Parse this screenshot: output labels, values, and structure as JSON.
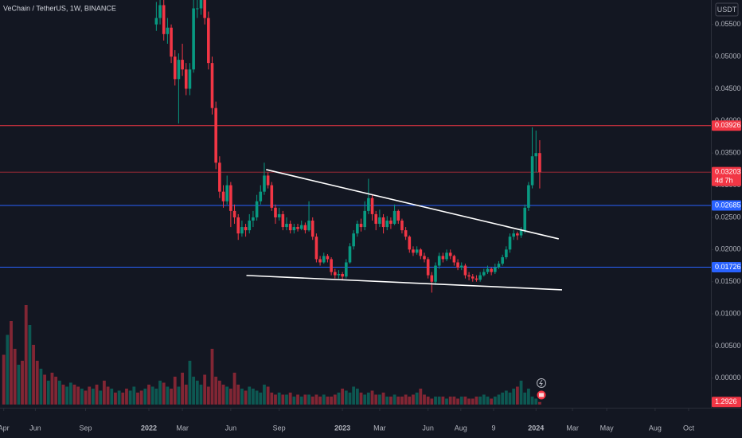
{
  "chart_data": {
    "type": "candlestick",
    "title": "VeChain / TetherUS, 1W, BINANCE",
    "currency": "USDT",
    "countdown": "4d 7h",
    "up_color": "#089981",
    "down_color": "#f23645",
    "xlim": [
      -1,
      190
    ],
    "ylim": [
      -0.0046,
      0.0588
    ],
    "vlim": [
      0,
      60
    ],
    "grid": false,
    "xticks": [
      {
        "value": 0,
        "label": "Apr"
      },
      {
        "value": 8.5,
        "label": "Jun"
      },
      {
        "value": 22,
        "label": "Sep"
      },
      {
        "value": 39,
        "label": "2022"
      },
      {
        "value": 48,
        "label": "Mar"
      },
      {
        "value": 61,
        "label": "Jun"
      },
      {
        "value": 74,
        "label": "Sep"
      },
      {
        "value": 91,
        "label": "2023"
      },
      {
        "value": 101,
        "label": "Mar"
      },
      {
        "value": 114,
        "label": "Jun"
      },
      {
        "value": 122.8,
        "label": "Aug"
      },
      {
        "value": 131.6,
        "label": "9"
      },
      {
        "value": 143,
        "label": "2024"
      },
      {
        "value": 152.8,
        "label": "Mar"
      },
      {
        "value": 162,
        "label": "May"
      },
      {
        "value": 175,
        "label": "Aug"
      },
      {
        "value": 184,
        "label": "Oct"
      }
    ],
    "yticks": [
      {
        "value": 0.055,
        "label": "0.05500"
      },
      {
        "value": 0.05,
        "label": "0.05000"
      },
      {
        "value": 0.045,
        "label": "0.04500"
      },
      {
        "value": 0.04,
        "label": "0.04000"
      },
      {
        "value": 0.035,
        "label": "0.03500"
      },
      {
        "value": 0.03,
        "label": "0.03000"
      },
      {
        "value": 0.025,
        "label": "0.02500"
      },
      {
        "value": 0.02,
        "label": "0.02000"
      },
      {
        "value": 0.015,
        "label": "0.01500"
      },
      {
        "value": 0.01,
        "label": "0.01000"
      },
      {
        "value": 0.005,
        "label": "0.00500"
      },
      {
        "value": 0,
        "label": "0.00000"
      }
    ],
    "levels": [
      {
        "value": 0.03926,
        "color": "#f23645"
      },
      {
        "value": 0.03203,
        "color": "#f23645",
        "last": true
      },
      {
        "value": 0.02685,
        "color": "#2962ff"
      },
      {
        "value": 0.01726,
        "color": "#2962ff"
      }
    ],
    "trendlines": [
      {
        "x": [
          70.5,
          149.1
        ],
        "y": [
          0.03243,
          0.02166
        ]
      },
      {
        "x": [
          65.2,
          150
        ],
        "y": [
          0.01597,
          0.01374
        ]
      }
    ],
    "candles": [
      [
        41,
        0.055,
        0.0585,
        0.054,
        0.056
      ],
      [
        42,
        0.056,
        0.0595,
        0.055,
        0.058
      ],
      [
        43,
        0.058,
        0.059,
        0.0525,
        0.0535
      ],
      [
        44,
        0.0535,
        0.056,
        0.052,
        0.0545
      ],
      [
        45,
        0.0545,
        0.055,
        0.049,
        0.05
      ],
      [
        46,
        0.05,
        0.051,
        0.0455,
        0.0465
      ],
      [
        47,
        0.0465,
        0.0505,
        0.0396,
        0.0495
      ],
      [
        48,
        0.0495,
        0.052,
        0.047,
        0.048
      ],
      [
        49,
        0.048,
        0.049,
        0.044,
        0.045
      ],
      [
        50,
        0.045,
        0.049,
        0.044,
        0.048
      ],
      [
        51,
        0.048,
        0.059,
        0.0475,
        0.0575
      ],
      [
        52,
        0.0575,
        0.06,
        0.056,
        0.0575
      ],
      [
        53,
        0.0575,
        0.061,
        0.0565,
        0.059
      ],
      [
        54,
        0.059,
        0.06,
        0.055,
        0.056
      ],
      [
        55,
        0.056,
        0.057,
        0.048,
        0.049
      ],
      [
        56,
        0.049,
        0.05,
        0.041,
        0.042
      ],
      [
        57,
        0.042,
        0.043,
        0.0325,
        0.0335
      ],
      [
        58,
        0.0335,
        0.0345,
        0.028,
        0.029
      ],
      [
        59,
        0.029,
        0.03,
        0.0265,
        0.0275
      ],
      [
        60,
        0.0275,
        0.0315,
        0.027,
        0.03
      ],
      [
        61,
        0.03,
        0.0305,
        0.0235,
        0.026
      ],
      [
        62,
        0.026,
        0.027,
        0.024,
        0.025
      ],
      [
        63,
        0.025,
        0.0255,
        0.0215,
        0.0225
      ],
      [
        64,
        0.0225,
        0.0245,
        0.022,
        0.0235
      ],
      [
        65,
        0.0235,
        0.024,
        0.022,
        0.023
      ],
      [
        66,
        0.023,
        0.0255,
        0.0225,
        0.0245
      ],
      [
        67,
        0.0245,
        0.026,
        0.0235,
        0.025
      ],
      [
        68,
        0.025,
        0.0285,
        0.0245,
        0.0275
      ],
      [
        69,
        0.0275,
        0.03,
        0.027,
        0.029
      ],
      [
        70,
        0.029,
        0.0335,
        0.0285,
        0.0315
      ],
      [
        71,
        0.0315,
        0.032,
        0.0295,
        0.03
      ],
      [
        72,
        0.03,
        0.0305,
        0.026,
        0.0265
      ],
      [
        73,
        0.0265,
        0.027,
        0.024,
        0.025
      ],
      [
        74,
        0.025,
        0.0265,
        0.0245,
        0.0255
      ],
      [
        75,
        0.0255,
        0.026,
        0.023,
        0.0235
      ],
      [
        76,
        0.0235,
        0.025,
        0.023,
        0.024
      ],
      [
        77,
        0.024,
        0.0245,
        0.0225,
        0.023
      ],
      [
        78,
        0.023,
        0.024,
        0.0225,
        0.0235
      ],
      [
        79,
        0.0235,
        0.024,
        0.0228,
        0.0232
      ],
      [
        80,
        0.0232,
        0.0245,
        0.023,
        0.0238
      ],
      [
        81,
        0.0238,
        0.0242,
        0.0225,
        0.023
      ],
      [
        82,
        0.023,
        0.0275,
        0.0228,
        0.0245
      ],
      [
        83,
        0.0245,
        0.025,
        0.0215,
        0.022
      ],
      [
        84,
        0.022,
        0.0225,
        0.018,
        0.0185
      ],
      [
        85,
        0.0185,
        0.019,
        0.0175,
        0.018
      ],
      [
        86,
        0.018,
        0.0195,
        0.0178,
        0.019
      ],
      [
        87,
        0.019,
        0.0193,
        0.018,
        0.0185
      ],
      [
        88,
        0.0185,
        0.0188,
        0.016,
        0.0165
      ],
      [
        89,
        0.0165,
        0.017,
        0.0155,
        0.016
      ],
      [
        90,
        0.016,
        0.0168,
        0.0155,
        0.0162
      ],
      [
        91,
        0.0162,
        0.0165,
        0.0152,
        0.0158
      ],
      [
        92,
        0.0158,
        0.0185,
        0.0155,
        0.018
      ],
      [
        93,
        0.018,
        0.021,
        0.0178,
        0.0205
      ],
      [
        94,
        0.0205,
        0.023,
        0.02,
        0.0225
      ],
      [
        95,
        0.0225,
        0.0245,
        0.022,
        0.024
      ],
      [
        96,
        0.024,
        0.0248,
        0.0228,
        0.0235
      ],
      [
        97,
        0.0235,
        0.0275,
        0.023,
        0.026
      ],
      [
        98,
        0.026,
        0.031,
        0.0255,
        0.028
      ],
      [
        99,
        0.028,
        0.0285,
        0.0245,
        0.0255
      ],
      [
        100,
        0.0255,
        0.026,
        0.023,
        0.024
      ],
      [
        101,
        0.024,
        0.0262,
        0.0235,
        0.025
      ],
      [
        102,
        0.025,
        0.0255,
        0.0225,
        0.0235
      ],
      [
        103,
        0.0235,
        0.0252,
        0.023,
        0.0245
      ],
      [
        104,
        0.0245,
        0.025,
        0.0232,
        0.024
      ],
      [
        105,
        0.024,
        0.027,
        0.0238,
        0.026
      ],
      [
        106,
        0.026,
        0.0262,
        0.024,
        0.0245
      ],
      [
        107,
        0.0245,
        0.0248,
        0.0225,
        0.023
      ],
      [
        108,
        0.023,
        0.0235,
        0.0215,
        0.022
      ],
      [
        109,
        0.022,
        0.0222,
        0.0195,
        0.02
      ],
      [
        110,
        0.02,
        0.0205,
        0.019,
        0.0195
      ],
      [
        111,
        0.0195,
        0.0205,
        0.0192,
        0.02
      ],
      [
        112,
        0.02,
        0.0202,
        0.0185,
        0.019
      ],
      [
        113,
        0.019,
        0.0195,
        0.018,
        0.0185
      ],
      [
        114,
        0.0185,
        0.0188,
        0.0155,
        0.016
      ],
      [
        115,
        0.016,
        0.0165,
        0.0133,
        0.015
      ],
      [
        116,
        0.015,
        0.018,
        0.0145,
        0.0175
      ],
      [
        117,
        0.0175,
        0.0195,
        0.017,
        0.019
      ],
      [
        118,
        0.019,
        0.0195,
        0.018,
        0.0185
      ],
      [
        119,
        0.0185,
        0.02,
        0.0182,
        0.0195
      ],
      [
        120,
        0.0195,
        0.02,
        0.0185,
        0.019
      ],
      [
        121,
        0.019,
        0.0192,
        0.0175,
        0.018
      ],
      [
        122,
        0.018,
        0.0185,
        0.0168,
        0.0172
      ],
      [
        123,
        0.0172,
        0.018,
        0.0168,
        0.0175
      ],
      [
        124,
        0.0175,
        0.0178,
        0.0155,
        0.016
      ],
      [
        125,
        0.016,
        0.0165,
        0.0152,
        0.0158
      ],
      [
        126,
        0.0158,
        0.0162,
        0.015,
        0.0155
      ],
      [
        127,
        0.0155,
        0.016,
        0.015,
        0.0153
      ],
      [
        128,
        0.0153,
        0.0165,
        0.015,
        0.016
      ],
      [
        129,
        0.016,
        0.017,
        0.0158,
        0.0165
      ],
      [
        130,
        0.0165,
        0.0175,
        0.0162,
        0.017
      ],
      [
        131,
        0.017,
        0.0172,
        0.016,
        0.0165
      ],
      [
        132,
        0.0165,
        0.0178,
        0.0162,
        0.0172
      ],
      [
        133,
        0.0172,
        0.0182,
        0.017,
        0.0178
      ],
      [
        134,
        0.0178,
        0.0192,
        0.0175,
        0.0188
      ],
      [
        135,
        0.0188,
        0.0205,
        0.0185,
        0.02
      ],
      [
        136,
        0.02,
        0.0225,
        0.0195,
        0.022
      ],
      [
        137,
        0.022,
        0.023,
        0.0215,
        0.0225
      ],
      [
        138,
        0.0225,
        0.0228,
        0.0215,
        0.0222
      ],
      [
        139,
        0.0222,
        0.0235,
        0.0218,
        0.023
      ],
      [
        140,
        0.023,
        0.027,
        0.0225,
        0.0265
      ],
      [
        141,
        0.0265,
        0.0305,
        0.026,
        0.03
      ],
      [
        142,
        0.03,
        0.039,
        0.0295,
        0.0345
      ],
      [
        143,
        0.0345,
        0.0385,
        0.032,
        0.035
      ],
      [
        144,
        0.035,
        0.037,
        0.0295,
        0.03203
      ]
    ],
    "volume": [
      [
        0,
        25,
        0
      ],
      [
        1,
        35,
        1
      ],
      [
        2,
        42,
        0
      ],
      [
        3,
        28,
        0
      ],
      [
        4,
        20,
        1
      ],
      [
        5,
        22,
        0
      ],
      [
        6,
        50,
        0
      ],
      [
        7,
        40,
        1
      ],
      [
        8,
        30,
        0
      ],
      [
        9,
        22,
        0
      ],
      [
        10,
        18,
        1
      ],
      [
        11,
        15,
        0
      ],
      [
        12,
        12,
        1
      ],
      [
        13,
        16,
        0
      ],
      [
        14,
        14,
        0
      ],
      [
        15,
        12,
        1
      ],
      [
        16,
        10,
        0
      ],
      [
        17,
        9,
        1
      ],
      [
        18,
        11,
        1
      ],
      [
        19,
        10,
        0
      ],
      [
        20,
        9,
        0
      ],
      [
        21,
        8,
        1
      ],
      [
        22,
        7,
        0
      ],
      [
        23,
        9,
        0
      ],
      [
        24,
        8,
        1
      ],
      [
        25,
        10,
        0
      ],
      [
        26,
        7,
        1
      ],
      [
        27,
        12,
        0
      ],
      [
        28,
        9,
        0
      ],
      [
        29,
        8,
        1
      ],
      [
        30,
        6,
        0
      ],
      [
        31,
        7,
        1
      ],
      [
        32,
        6,
        0
      ],
      [
        33,
        8,
        0
      ],
      [
        34,
        7,
        1
      ],
      [
        35,
        9,
        1
      ],
      [
        36,
        6,
        0
      ],
      [
        37,
        7,
        0
      ],
      [
        38,
        8,
        1
      ],
      [
        39,
        10,
        0
      ],
      [
        40,
        9,
        1
      ],
      [
        41,
        8,
        1
      ],
      [
        42,
        12,
        1
      ],
      [
        43,
        11,
        0
      ],
      [
        44,
        9,
        1
      ],
      [
        45,
        8,
        0
      ],
      [
        46,
        14,
        0
      ],
      [
        47,
        9,
        1
      ],
      [
        48,
        16,
        0
      ],
      [
        49,
        10,
        0
      ],
      [
        50,
        22,
        1
      ],
      [
        51,
        14,
        1
      ],
      [
        52,
        12,
        1
      ],
      [
        53,
        10,
        1
      ],
      [
        54,
        15,
        0
      ],
      [
        55,
        9,
        0
      ],
      [
        56,
        28,
        0
      ],
      [
        57,
        14,
        0
      ],
      [
        58,
        12,
        0
      ],
      [
        59,
        10,
        0
      ],
      [
        60,
        9,
        1
      ],
      [
        61,
        8,
        0
      ],
      [
        62,
        16,
        0
      ],
      [
        63,
        10,
        0
      ],
      [
        64,
        8,
        1
      ],
      [
        65,
        7,
        0
      ],
      [
        66,
        9,
        1
      ],
      [
        67,
        8,
        1
      ],
      [
        68,
        7,
        1
      ],
      [
        69,
        6,
        1
      ],
      [
        70,
        10,
        1
      ],
      [
        71,
        9,
        0
      ],
      [
        72,
        6,
        0
      ],
      [
        73,
        5,
        0
      ],
      [
        74,
        6,
        1
      ],
      [
        75,
        5,
        0
      ],
      [
        76,
        5,
        1
      ],
      [
        77,
        6,
        0
      ],
      [
        78,
        4,
        1
      ],
      [
        79,
        5,
        0
      ],
      [
        80,
        4,
        1
      ],
      [
        81,
        5,
        0
      ],
      [
        82,
        5,
        1
      ],
      [
        83,
        4,
        0
      ],
      [
        84,
        5,
        0
      ],
      [
        85,
        4,
        0
      ],
      [
        86,
        5,
        1
      ],
      [
        87,
        4,
        0
      ],
      [
        88,
        4,
        0
      ],
      [
        89,
        5,
        0
      ],
      [
        90,
        6,
        1
      ],
      [
        91,
        8,
        0
      ],
      [
        92,
        7,
        1
      ],
      [
        93,
        6,
        1
      ],
      [
        94,
        9,
        1
      ],
      [
        95,
        8,
        1
      ],
      [
        96,
        6,
        0
      ],
      [
        97,
        5,
        1
      ],
      [
        98,
        6,
        1
      ],
      [
        99,
        7,
        0
      ],
      [
        100,
        5,
        0
      ],
      [
        101,
        5,
        1
      ],
      [
        102,
        6,
        0
      ],
      [
        103,
        4,
        1
      ],
      [
        104,
        4,
        0
      ],
      [
        105,
        5,
        1
      ],
      [
        106,
        4,
        0
      ],
      [
        107,
        4,
        0
      ],
      [
        108,
        5,
        0
      ],
      [
        109,
        4,
        0
      ],
      [
        110,
        5,
        0
      ],
      [
        111,
        6,
        1
      ],
      [
        112,
        8,
        0
      ],
      [
        113,
        5,
        0
      ],
      [
        114,
        4,
        0
      ],
      [
        115,
        3,
        0
      ],
      [
        116,
        4,
        1
      ],
      [
        117,
        4,
        1
      ],
      [
        118,
        4,
        0
      ],
      [
        119,
        3,
        1
      ],
      [
        120,
        4,
        0
      ],
      [
        121,
        4,
        0
      ],
      [
        122,
        3,
        0
      ],
      [
        123,
        4,
        1
      ],
      [
        124,
        4,
        0
      ],
      [
        125,
        3,
        0
      ],
      [
        126,
        3,
        0
      ],
      [
        127,
        4,
        0
      ],
      [
        128,
        4,
        1
      ],
      [
        129,
        5,
        1
      ],
      [
        130,
        4,
        1
      ],
      [
        131,
        3,
        0
      ],
      [
        132,
        4,
        1
      ],
      [
        133,
        5,
        1
      ],
      [
        134,
        6,
        1
      ],
      [
        135,
        7,
        1
      ],
      [
        136,
        6,
        1
      ],
      [
        137,
        8,
        1
      ],
      [
        138,
        9,
        0
      ],
      [
        139,
        12,
        1
      ],
      [
        140,
        6,
        1
      ],
      [
        141,
        8,
        1
      ],
      [
        142,
        4,
        1
      ],
      [
        143,
        3,
        1
      ],
      [
        144,
        1.2926,
        0
      ]
    ]
  }
}
